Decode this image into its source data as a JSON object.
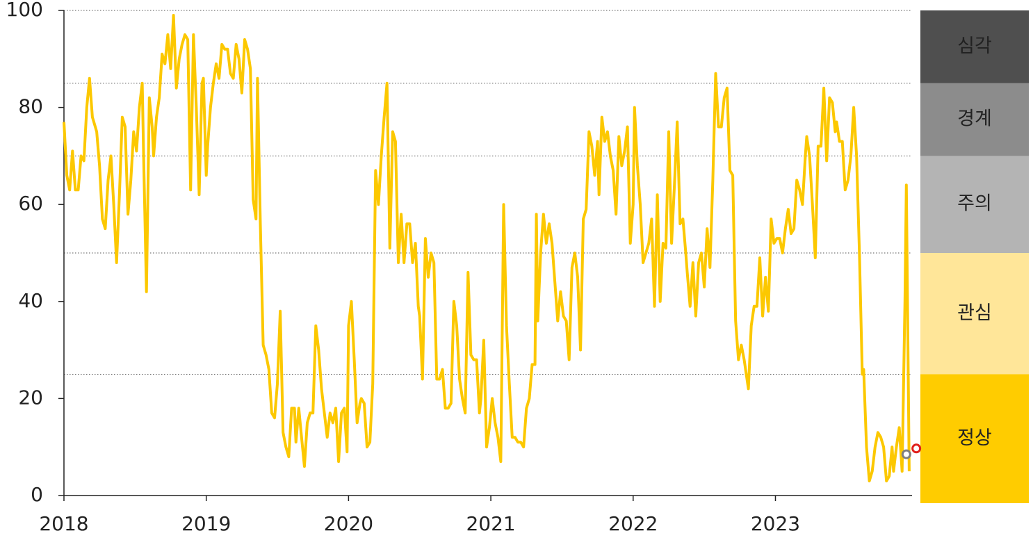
{
  "chart_data": {
    "type": "line",
    "xlim": [
      2018,
      2023.96
    ],
    "xticks": [
      2018,
      2019,
      2020,
      2021,
      2022,
      2023
    ],
    "ylim": [
      0,
      100
    ],
    "yticks": [
      0,
      20,
      40,
      60,
      80,
      100
    ],
    "x": [
      2018.0,
      2018.02,
      2018.04,
      2018.06,
      2018.08,
      2018.1,
      2018.12,
      2018.14,
      2018.16,
      2018.18,
      2018.2,
      2018.21,
      2018.23,
      2018.25,
      2018.27,
      2018.29,
      2018.31,
      2018.33,
      2018.35,
      2018.37,
      2018.39,
      2018.41,
      2018.43,
      2018.45,
      2018.47,
      2018.49,
      2018.51,
      2018.53,
      2018.55,
      2018.56,
      2018.58,
      2018.6,
      2018.62,
      2018.63,
      2018.65,
      2018.67,
      2018.69,
      2018.71,
      2018.73,
      2018.75,
      2018.77,
      2018.79,
      2018.81,
      2018.83,
      2018.85,
      2018.87,
      2018.89,
      2018.91,
      2018.93,
      2018.95,
      2018.97,
      2018.98,
      2019.0,
      2019.01,
      2019.03,
      2019.05,
      2019.07,
      2019.09,
      2019.11,
      2019.13,
      2019.15,
      2019.17,
      2019.19,
      2019.21,
      2019.23,
      2019.25,
      2019.27,
      2019.29,
      2019.31,
      2019.33,
      2019.35,
      2019.36,
      2019.38,
      2019.4,
      2019.42,
      2019.44,
      2019.46,
      2019.48,
      2019.5,
      2019.52,
      2019.54,
      2019.56,
      2019.58,
      2019.6,
      2019.62,
      2019.63,
      2019.65,
      2019.67,
      2019.69,
      2019.71,
      2019.73,
      2019.75,
      2019.77,
      2019.79,
      2019.81,
      2019.83,
      2019.85,
      2019.87,
      2019.89,
      2019.91,
      2019.93,
      2019.95,
      2019.97,
      2019.99,
      2020.0,
      2020.02,
      2020.04,
      2020.06,
      2020.08,
      2020.09,
      2020.11,
      2020.13,
      2020.15,
      2020.17,
      2020.19,
      2020.21,
      2020.23,
      2020.25,
      2020.27,
      2020.29,
      2020.31,
      2020.33,
      2020.35,
      2020.37,
      2020.39,
      2020.41,
      2020.43,
      2020.45,
      2020.47,
      2020.49,
      2020.5,
      2020.52,
      2020.54,
      2020.56,
      2020.58,
      2020.6,
      2020.62,
      2020.64,
      2020.66,
      2020.68,
      2020.7,
      2020.72,
      2020.74,
      2020.76,
      2020.78,
      2020.8,
      2020.82,
      2020.84,
      2020.86,
      2020.88,
      2020.9,
      2020.92,
      2020.93,
      2020.95,
      2020.97,
      2020.99,
      2021.01,
      2021.03,
      2021.05,
      2021.07,
      2021.09,
      2021.11,
      2021.13,
      2021.15,
      2021.17,
      2021.19,
      2021.21,
      2021.23,
      2021.25,
      2021.27,
      2021.29,
      2021.31,
      2021.32,
      2021.33,
      2021.35,
      2021.37,
      2021.39,
      2021.41,
      2021.43,
      2021.45,
      2021.47,
      2021.49,
      2021.51,
      2021.53,
      2021.55,
      2021.57,
      2021.59,
      2021.61,
      2021.63,
      2021.65,
      2021.67,
      2021.69,
      2021.71,
      2021.73,
      2021.75,
      2021.76,
      2021.78,
      2021.8,
      2021.82,
      2021.84,
      2021.86,
      2021.88,
      2021.9,
      2021.92,
      2021.94,
      2021.96,
      2021.98,
      2022.0,
      2022.01,
      2022.03,
      2022.05,
      2022.07,
      2022.09,
      2022.11,
      2022.13,
      2022.15,
      2022.17,
      2022.19,
      2022.21,
      2022.23,
      2022.25,
      2022.27,
      2022.29,
      2022.31,
      2022.33,
      2022.35,
      2022.37,
      2022.38,
      2022.4,
      2022.42,
      2022.44,
      2022.46,
      2022.48,
      2022.5,
      2022.52,
      2022.54,
      2022.56,
      2022.58,
      2022.6,
      2022.62,
      2022.64,
      2022.66,
      2022.68,
      2022.7,
      2022.72,
      2022.74,
      2022.76,
      2022.78,
      2022.79,
      2022.81,
      2022.83,
      2022.85,
      2022.87,
      2022.89,
      2022.91,
      2022.93,
      2022.95,
      2022.97,
      2022.99,
      2023.01,
      2023.03,
      2023.05,
      2023.07,
      2023.09,
      2023.11,
      2023.13,
      2023.15,
      2023.17,
      2023.19,
      2023.21,
      2023.22,
      2023.24,
      2023.26,
      2023.28,
      2023.3,
      2023.32,
      2023.34,
      2023.36,
      2023.38,
      2023.4,
      2023.42,
      2023.43,
      2023.45,
      2023.47,
      2023.49,
      2023.51,
      2023.53,
      2023.55,
      2023.57,
      2023.59,
      2023.61,
      2023.62,
      2023.64,
      2023.66,
      2023.68,
      2023.7,
      2023.72,
      2023.74,
      2023.76,
      2023.78,
      2023.8,
      2023.82,
      2023.83,
      2023.85,
      2023.87,
      2023.89,
      2023.91,
      2023.92,
      2023.94
    ],
    "series": [
      {
        "color": "#fcc800",
        "values": [
          77,
          66,
          63,
          71,
          63,
          63,
          70,
          69,
          80,
          86,
          78,
          77,
          75,
          68,
          57,
          55,
          65,
          70,
          60,
          48,
          62,
          78,
          76,
          58,
          65,
          75,
          71,
          80,
          85,
          70,
          42,
          82,
          76,
          70,
          78,
          82,
          91,
          89,
          95,
          88,
          99,
          84,
          90,
          93,
          95,
          94,
          63,
          95,
          80,
          62,
          85,
          86,
          66,
          72,
          80,
          85,
          89,
          86,
          93,
          92,
          92,
          87,
          86,
          93,
          90,
          83,
          94,
          92,
          88,
          61,
          57,
          86,
          56,
          31,
          29,
          26,
          17,
          16,
          23,
          38,
          13,
          10,
          8,
          18,
          18,
          11,
          18,
          12,
          6,
          15,
          17,
          17,
          35,
          30,
          22,
          17,
          12,
          17,
          15,
          18,
          7,
          17,
          18,
          9,
          35,
          40,
          28,
          15,
          19,
          20,
          19,
          10,
          11,
          23,
          67,
          60,
          70,
          78,
          85,
          51,
          75,
          73,
          48,
          58,
          48,
          56,
          56,
          48,
          52,
          39,
          37,
          24,
          53,
          45,
          50,
          48,
          24,
          24,
          26,
          18,
          18,
          19,
          40,
          35,
          24,
          20,
          17,
          46,
          29,
          28,
          28,
          17,
          20,
          32,
          10,
          14,
          20,
          15,
          12,
          7,
          60,
          35,
          23,
          12,
          12,
          11,
          11,
          10,
          18,
          20,
          27,
          27,
          58,
          36,
          50,
          58,
          52,
          56,
          52,
          44,
          36,
          42,
          37,
          36,
          28,
          47,
          50,
          45,
          30,
          57,
          59,
          75,
          72,
          66,
          73,
          62,
          78,
          73,
          75,
          70,
          67,
          58,
          74,
          68,
          71,
          76,
          52,
          60,
          80,
          68,
          60,
          48,
          50,
          52,
          57,
          39,
          62,
          40,
          52,
          51,
          75,
          52,
          64,
          77,
          56,
          57,
          50,
          46,
          39,
          48,
          37,
          48,
          50,
          43,
          55,
          47,
          65,
          87,
          76,
          76,
          82,
          84,
          67,
          66,
          36,
          28,
          31,
          28,
          26,
          22,
          35,
          39,
          39,
          49,
          37,
          45,
          38,
          57,
          52,
          53,
          53,
          50,
          55,
          59,
          54,
          55,
          65,
          63,
          60,
          70,
          74,
          70,
          60,
          49,
          72,
          72,
          84,
          69,
          82,
          81,
          75,
          77,
          73,
          73,
          63,
          65,
          70,
          80,
          70,
          50,
          25,
          26,
          10,
          3,
          5,
          10,
          13,
          12,
          10,
          3,
          4,
          10,
          5,
          10,
          14,
          5,
          40,
          64,
          5
        ]
      }
    ],
    "points": [
      {
        "x": 2023.92,
        "value": 8.5,
        "color": "#7f7f7f"
      },
      {
        "x": 2023.99,
        "value": 9.7,
        "color": "#e0201b"
      }
    ],
    "bands": [
      {
        "name": "정상",
        "from": 0,
        "to": 25,
        "color": "#ffcc00",
        "text_color": "#222222"
      },
      {
        "name": "관심",
        "from": 25,
        "to": 50,
        "color": "#ffe699",
        "text_color": "#222222"
      },
      {
        "name": "주의",
        "from": 50,
        "to": 70,
        "color": "#b4b4b4",
        "text_color": "#222222"
      },
      {
        "name": "경계",
        "from": 70,
        "to": 85,
        "color": "#8c8c8c",
        "text_color": "#ffffff"
      },
      {
        "name": "심각",
        "from": 85,
        "to": 100,
        "color": "#4f4f4f",
        "text_color": "#ffffff"
      }
    ]
  }
}
